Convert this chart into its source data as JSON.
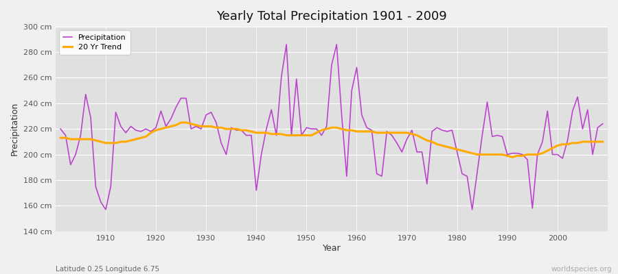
{
  "title": "Yearly Total Precipitation 1901 - 2009",
  "xlabel": "Year",
  "ylabel": "Precipitation",
  "subtitle": "Latitude 0.25 Longitude 6.75",
  "watermark": "worldspecies.org",
  "bg_color": "#f0f0f0",
  "plot_bg_color": "#e0e0e0",
  "precip_color": "#bb44cc",
  "trend_color": "#ffaa00",
  "ylim": [
    140,
    300
  ],
  "yticks": [
    140,
    160,
    180,
    200,
    220,
    240,
    260,
    280,
    300
  ],
  "years": [
    1901,
    1902,
    1903,
    1904,
    1905,
    1906,
    1907,
    1908,
    1909,
    1910,
    1911,
    1912,
    1913,
    1914,
    1915,
    1916,
    1917,
    1918,
    1919,
    1920,
    1921,
    1922,
    1923,
    1924,
    1925,
    1926,
    1927,
    1928,
    1929,
    1930,
    1931,
    1932,
    1933,
    1934,
    1935,
    1936,
    1937,
    1938,
    1939,
    1940,
    1941,
    1942,
    1943,
    1944,
    1945,
    1946,
    1947,
    1948,
    1949,
    1950,
    1951,
    1952,
    1953,
    1954,
    1955,
    1956,
    1957,
    1958,
    1959,
    1960,
    1961,
    1962,
    1963,
    1964,
    1965,
    1966,
    1967,
    1968,
    1969,
    1970,
    1971,
    1972,
    1973,
    1974,
    1975,
    1976,
    1977,
    1978,
    1979,
    1980,
    1981,
    1982,
    1983,
    1984,
    1985,
    1986,
    1987,
    1988,
    1989,
    1990,
    1991,
    1992,
    1993,
    1994,
    1995,
    1996,
    1997,
    1998,
    1999,
    2000,
    2001,
    2002,
    2003,
    2004,
    2005,
    2006,
    2007,
    2008,
    2009
  ],
  "precip": [
    220,
    215,
    192,
    200,
    215,
    247,
    229,
    175,
    163,
    157,
    175,
    233,
    222,
    217,
    222,
    219,
    218,
    220,
    218,
    221,
    234,
    222,
    228,
    237,
    244,
    244,
    220,
    222,
    220,
    231,
    233,
    225,
    209,
    200,
    221,
    219,
    219,
    215,
    215,
    172,
    200,
    220,
    235,
    215,
    261,
    286,
    215,
    259,
    215,
    221,
    220,
    220,
    215,
    222,
    270,
    286,
    231,
    183,
    250,
    268,
    231,
    221,
    219,
    185,
    183,
    218,
    215,
    209,
    202,
    212,
    219,
    202,
    202,
    177,
    218,
    221,
    219,
    218,
    219,
    202,
    185,
    183,
    157,
    186,
    215,
    241,
    214,
    215,
    214,
    200,
    201,
    201,
    200,
    196,
    158,
    200,
    210,
    234,
    200,
    200,
    197,
    211,
    234,
    245,
    220,
    235,
    200,
    221,
    224
  ],
  "trend": [
    213,
    213,
    212,
    212,
    212,
    212,
    212,
    211,
    210,
    209,
    209,
    209,
    210,
    210,
    211,
    212,
    213,
    214,
    217,
    219,
    220,
    221,
    222,
    223,
    225,
    225,
    224,
    223,
    222,
    222,
    222,
    221,
    221,
    220,
    220,
    220,
    219,
    219,
    218,
    217,
    217,
    217,
    216,
    216,
    216,
    215,
    215,
    215,
    215,
    215,
    215,
    217,
    219,
    220,
    221,
    221,
    220,
    219,
    219,
    218,
    218,
    218,
    218,
    217,
    217,
    217,
    217,
    217,
    217,
    217,
    216,
    215,
    213,
    211,
    210,
    208,
    207,
    206,
    205,
    204,
    203,
    202,
    201,
    200,
    200,
    200,
    200,
    200,
    200,
    199,
    198,
    199,
    199,
    200,
    200,
    200,
    201,
    203,
    205,
    207,
    208,
    208,
    209,
    209,
    210,
    210,
    210,
    210,
    210
  ]
}
